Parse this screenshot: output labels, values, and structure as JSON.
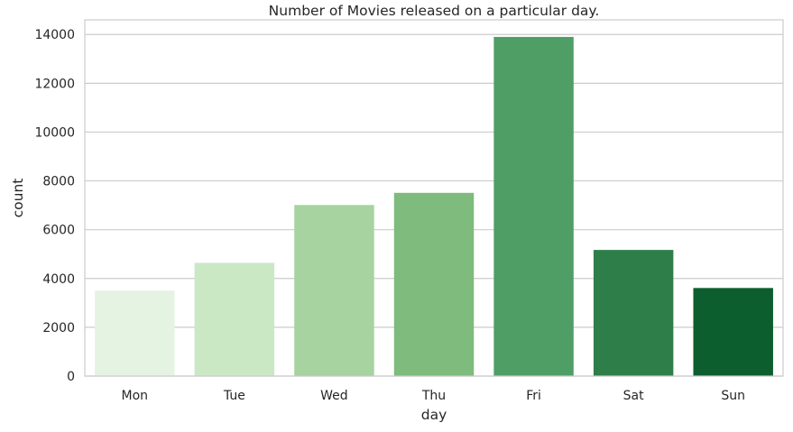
{
  "chart_data": {
    "type": "bar",
    "title": "Number of Movies released on a particular day.",
    "xlabel": "day",
    "ylabel": "count",
    "categories": [
      "Mon",
      "Tue",
      "Wed",
      "Thu",
      "Fri",
      "Sat",
      "Sun"
    ],
    "values": [
      3500,
      4640,
      7010,
      7510,
      13900,
      5170,
      3610
    ],
    "colors": [
      "#e5f3e2",
      "#cae8c4",
      "#a6d39f",
      "#7ebb7d",
      "#4f9e65",
      "#2e7e49",
      "#0c5e2e"
    ],
    "ylim": [
      0,
      14600
    ],
    "yticks": [
      "0",
      "2000",
      "4000",
      "6000",
      "8000",
      "10000",
      "12000",
      "14000"
    ],
    "grid": "horizontal",
    "legend": "none"
  }
}
